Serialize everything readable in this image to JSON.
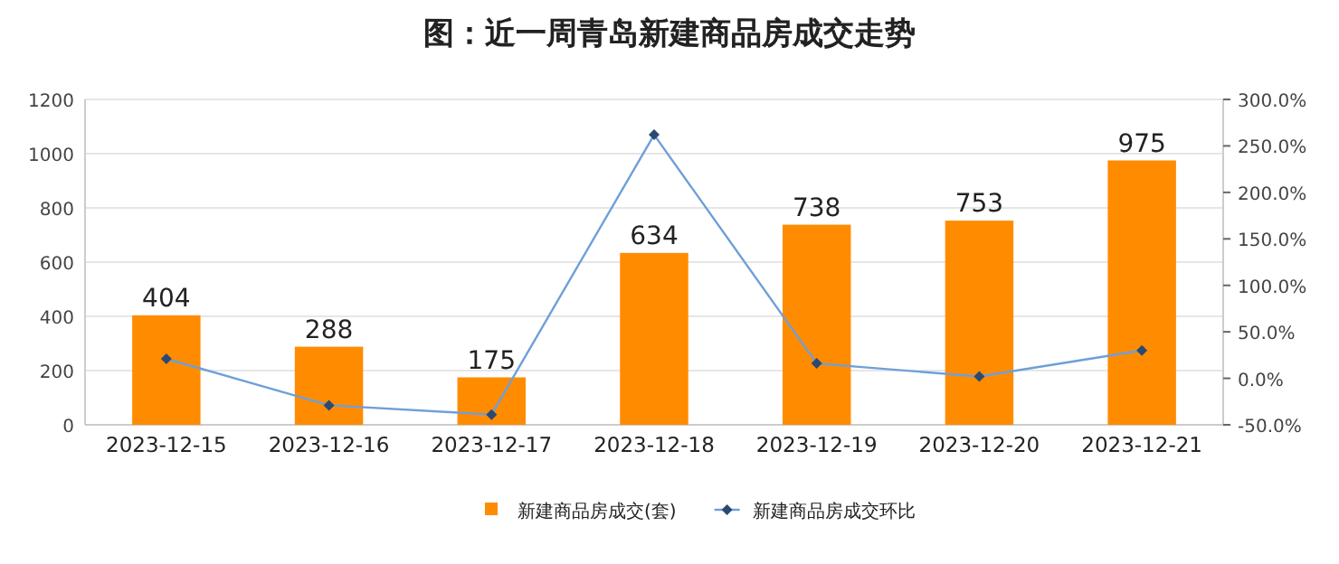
{
  "chart_data": {
    "type": "bar",
    "title": "图：近一周青岛新建商品房成交走势",
    "categories": [
      "2023-12-15",
      "2023-12-16",
      "2023-12-17",
      "2023-12-18",
      "2023-12-19",
      "2023-12-20",
      "2023-12-21"
    ],
    "series": [
      {
        "name": "新建商品房成交(套)",
        "color": "#ff8c00",
        "values": [
          404,
          288,
          175,
          634,
          738,
          753,
          975
        ],
        "value_labels": [
          "404",
          "288",
          "175",
          "634",
          "738",
          "753",
          "975"
        ]
      },
      {
        "name": "新建商品房成交环比",
        "type": "line",
        "axis": "y2",
        "color": "#6f9fd8",
        "values": [
          21,
          -29,
          -39,
          262,
          16,
          2,
          30
        ]
      }
    ],
    "ylim": [
      0,
      1200
    ],
    "yticks": [
      0,
      200,
      400,
      600,
      800,
      1000,
      1200
    ],
    "y2lim": [
      -50,
      300
    ],
    "y2ticks": [
      {
        "value": -50,
        "label": "-50.0%"
      },
      {
        "value": 0,
        "label": "0.0%"
      },
      {
        "value": 50,
        "label": "50.0%"
      },
      {
        "value": 100,
        "label": "100.0%"
      },
      {
        "value": 150,
        "label": "150.0%"
      },
      {
        "value": 200,
        "label": "200.0%"
      },
      {
        "value": 250,
        "label": "250.0%"
      },
      {
        "value": 300,
        "label": "300.0%"
      }
    ],
    "grid": "y",
    "legend": "bottom",
    "marker": "diamond",
    "line_style": "solid"
  }
}
